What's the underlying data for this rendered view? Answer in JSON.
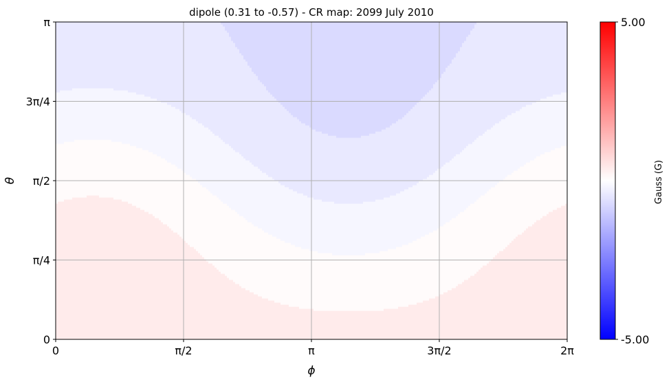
{
  "chart_data": {
    "type": "heatmap",
    "title": "dipole (0.31 to -0.57) - CR map: 2099 July 2010",
    "xlabel": "ϕ",
    "ylabel": "θ",
    "x_ticks": [
      {
        "value": 0,
        "label": "0"
      },
      {
        "value": 1.5708,
        "label": "π/2"
      },
      {
        "value": 3.1416,
        "label": "π"
      },
      {
        "value": 4.7124,
        "label": "3π/2"
      },
      {
        "value": 6.2832,
        "label": "2π"
      }
    ],
    "y_ticks": [
      {
        "value": 0,
        "label": "0"
      },
      {
        "value": 0.7854,
        "label": "π/4"
      },
      {
        "value": 1.5708,
        "label": "π/2"
      },
      {
        "value": 2.3562,
        "label": "3π/4"
      },
      {
        "value": 3.1416,
        "label": "π"
      }
    ],
    "xlim": [
      0,
      6.2832
    ],
    "ylim": [
      0,
      3.1416
    ],
    "grid": true,
    "field": {
      "model": "dipole",
      "max": 0.31,
      "min": -0.57,
      "contour_levels": [
        -0.9,
        -0.55,
        -0.3,
        -0.05,
        0.2
      ]
    },
    "colorbar": {
      "label": "Gauss (G)",
      "min": -5.0,
      "max": 5.0,
      "min_label": "-5.00",
      "max_label": "5.00",
      "colormap": "bwr",
      "low_color": "#0000ff",
      "mid_color": "#ffffff",
      "high_color": "#ff0000"
    }
  }
}
